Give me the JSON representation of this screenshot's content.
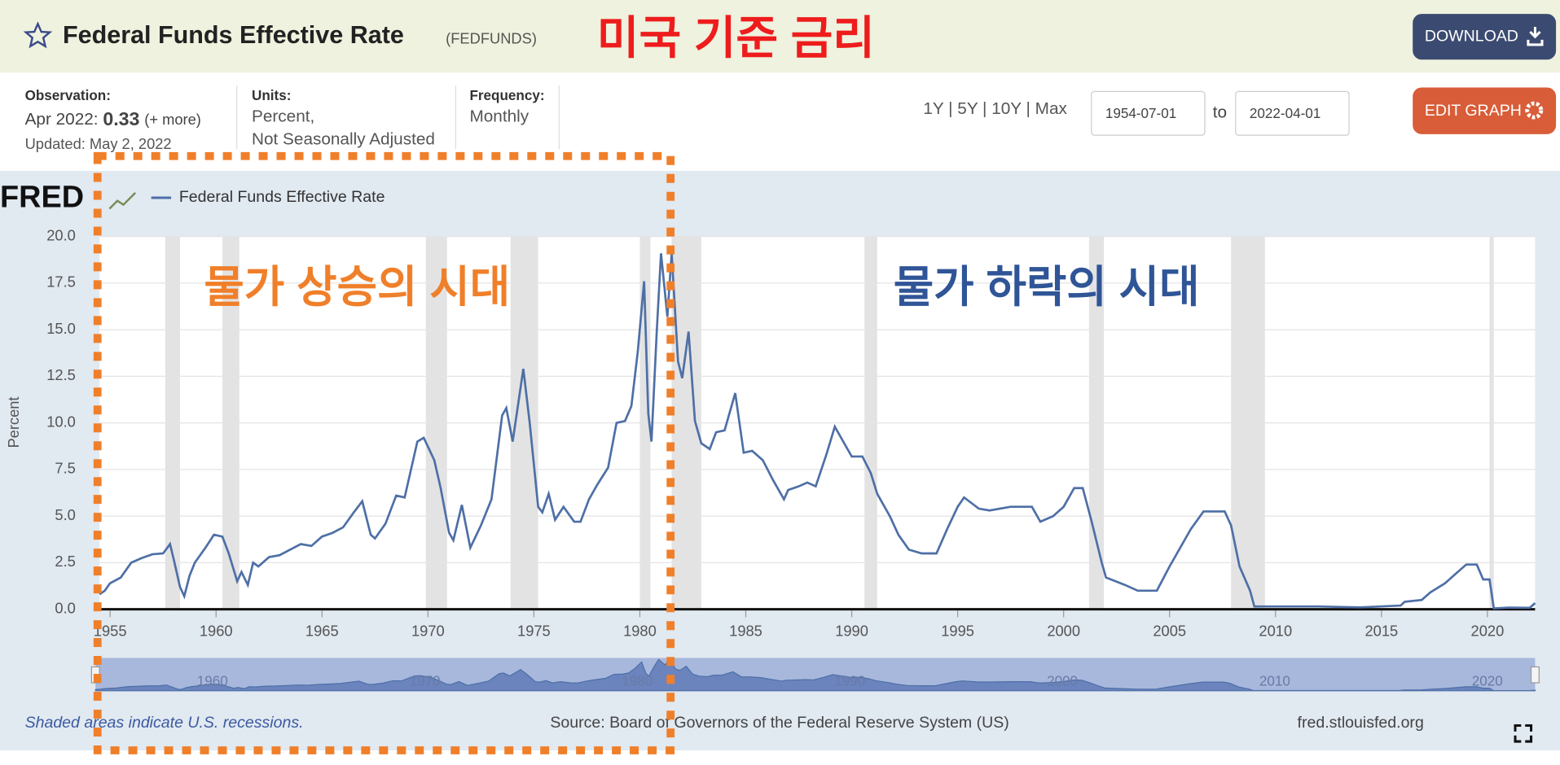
{
  "header": {
    "title": "Federal Funds Effective Rate",
    "code": "(FEDFUNDS)",
    "annotation": "미국 기준 금리",
    "download": "DOWNLOAD",
    "edit": "EDIT GRAPH",
    "observation_label": "Observation:",
    "observation_date": "Apr 2022:",
    "observation_value": "0.33",
    "more": "(+ more)",
    "updated": "Updated: May 2, 2022",
    "units_label": "Units:",
    "units_1": "Percent,",
    "units_2": "Not Seasonally Adjusted",
    "frequency_label": "Frequency:",
    "frequency": "Monthly",
    "ranges": "1Y | 5Y | 10Y | Max",
    "start": "1954-07-01",
    "to": "to",
    "end": "2022-04-01"
  },
  "annotations": {
    "left": "물가 상승의 시대",
    "right": "물가 하락의 시대"
  },
  "footer": {
    "logo": "FRED",
    "recessions_note": "Shaded areas indicate U.S. recessions.",
    "source": "Source: Board of Governors of the Federal Reserve System (US)",
    "site": "fred.stlouisfed.org"
  },
  "chart_data": {
    "type": "line",
    "ylabel": "Percent",
    "grid": true,
    "x": [
      1954.5,
      1954.75,
      1955,
      1955.5,
      1956,
      1956.5,
      1957,
      1957.5,
      1957.83,
      1958,
      1958.3,
      1958.5,
      1958.75,
      1959,
      1959.5,
      1959.9,
      1960.3,
      1960.6,
      1961,
      1961.2,
      1961.5,
      1961.75,
      1962,
      1962.5,
      1963,
      1963.5,
      1964,
      1964.5,
      1965,
      1965.5,
      1966,
      1966.5,
      1966.9,
      1967.3,
      1967.5,
      1968,
      1968.5,
      1968.9,
      1969.5,
      1969.8,
      1970.3,
      1970.6,
      1971,
      1971.2,
      1971.6,
      1972,
      1972.5,
      1973,
      1973.5,
      1973.7,
      1974,
      1974.5,
      1974.8,
      1975.2,
      1975.4,
      1975.7,
      1976,
      1976.4,
      1976.9,
      1977.2,
      1977.6,
      1978,
      1978.5,
      1978.9,
      1979.3,
      1979.6,
      1979.9,
      1980.2,
      1980.4,
      1980.55,
      1980.8,
      1981,
      1981.3,
      1981.5,
      1981.8,
      1982,
      1982.3,
      1982.6,
      1982.9,
      1983.3,
      1983.6,
      1984,
      1984.5,
      1984.9,
      1985.3,
      1985.8,
      1986.3,
      1986.8,
      1987,
      1987.5,
      1987.9,
      1988.3,
      1988.8,
      1989.2,
      1989.6,
      1990,
      1990.5,
      1990.9,
      1991.2,
      1991.8,
      1992.2,
      1992.7,
      1993.3,
      1994,
      1994.5,
      1995,
      1995.3,
      1996,
      1996.5,
      1997.5,
      1998.5,
      1998.9,
      1999.5,
      2000,
      2000.5,
      2000.9,
      2001.3,
      2001.8,
      2002,
      2002.9,
      2003.5,
      2004.4,
      2005,
      2006,
      2006.6,
      2007.6,
      2007.9,
      2008.3,
      2008.8,
      2009,
      2010,
      2012,
      2014,
      2015.9,
      2016.1,
      2016.9,
      2017.3,
      2018,
      2018.5,
      2019,
      2019.5,
      2019.8,
      2020.1,
      2020.3,
      2021,
      2022,
      2022.25
    ],
    "series": [
      {
        "name": "Federal Funds Effective Rate",
        "color": "#4e6fa6",
        "values": [
          0.8,
          1.0,
          1.4,
          1.7,
          2.5,
          2.75,
          2.95,
          3.0,
          3.5,
          2.7,
          1.2,
          0.7,
          1.8,
          2.5,
          3.3,
          4.0,
          3.9,
          3.0,
          1.5,
          2.0,
          1.3,
          2.5,
          2.3,
          2.8,
          2.9,
          3.2,
          3.5,
          3.4,
          3.9,
          4.1,
          4.4,
          5.2,
          5.8,
          4.0,
          3.8,
          4.6,
          6.1,
          6.0,
          9.0,
          9.2,
          8.0,
          6.5,
          4.1,
          3.7,
          5.6,
          3.3,
          4.5,
          5.9,
          10.4,
          10.8,
          9.0,
          12.9,
          10.0,
          5.5,
          5.2,
          6.2,
          4.8,
          5.5,
          4.7,
          4.7,
          5.9,
          6.7,
          7.6,
          10.0,
          10.1,
          10.9,
          13.8,
          17.6,
          10.5,
          9.0,
          15.0,
          19.1,
          15.7,
          19.1,
          13.3,
          12.4,
          14.9,
          10.1,
          8.9,
          8.6,
          9.5,
          9.6,
          11.6,
          8.4,
          8.5,
          8.0,
          6.9,
          5.9,
          6.4,
          6.6,
          6.8,
          6.6,
          8.3,
          9.8,
          9.0,
          8.2,
          8.2,
          7.3,
          6.2,
          5.0,
          4.0,
          3.2,
          3.0,
          3.0,
          4.3,
          5.5,
          6.0,
          5.4,
          5.3,
          5.5,
          5.5,
          4.7,
          5.0,
          5.5,
          6.5,
          6.5,
          4.8,
          2.5,
          1.7,
          1.3,
          1.0,
          1.0,
          2.3,
          4.3,
          5.25,
          5.25,
          4.5,
          2.3,
          1.0,
          0.15,
          0.15,
          0.15,
          0.1,
          0.2,
          0.4,
          0.5,
          0.9,
          1.4,
          1.9,
          2.4,
          2.4,
          1.6,
          1.6,
          0.05,
          0.09,
          0.08,
          0.33
        ]
      }
    ],
    "xlim": [
      1954.5,
      2022.25
    ],
    "ylim": [
      0,
      20
    ],
    "xticks": [
      1955,
      1960,
      1965,
      1970,
      1975,
      1980,
      1985,
      1990,
      1995,
      2000,
      2005,
      2010,
      2015,
      2020
    ],
    "yticks": [
      {
        "value": 0,
        "label": "0.0"
      },
      {
        "value": 2.5,
        "label": "2.5"
      },
      {
        "value": 5,
        "label": "5.0"
      },
      {
        "value": 7.5,
        "label": "7.5"
      },
      {
        "value": 10,
        "label": "10.0"
      },
      {
        "value": 12.5,
        "label": "12.5"
      },
      {
        "value": 15,
        "label": "15.0"
      },
      {
        "value": 17.5,
        "label": "17.5"
      },
      {
        "value": 20,
        "label": "20.0"
      }
    ],
    "recessions": [
      [
        1957.6,
        1958.3
      ],
      [
        1960.3,
        1961.1
      ],
      [
        1969.9,
        1970.9
      ],
      [
        1973.9,
        1975.2
      ],
      [
        1980.0,
        1980.5
      ],
      [
        1981.5,
        1982.9
      ],
      [
        1990.6,
        1991.2
      ],
      [
        2001.2,
        2001.9
      ],
      [
        2007.9,
        2009.5
      ],
      [
        2020.1,
        2020.3
      ]
    ],
    "navigator_xticks": [
      1960,
      1970,
      1980,
      1990,
      2000,
      2010,
      2020
    ]
  }
}
